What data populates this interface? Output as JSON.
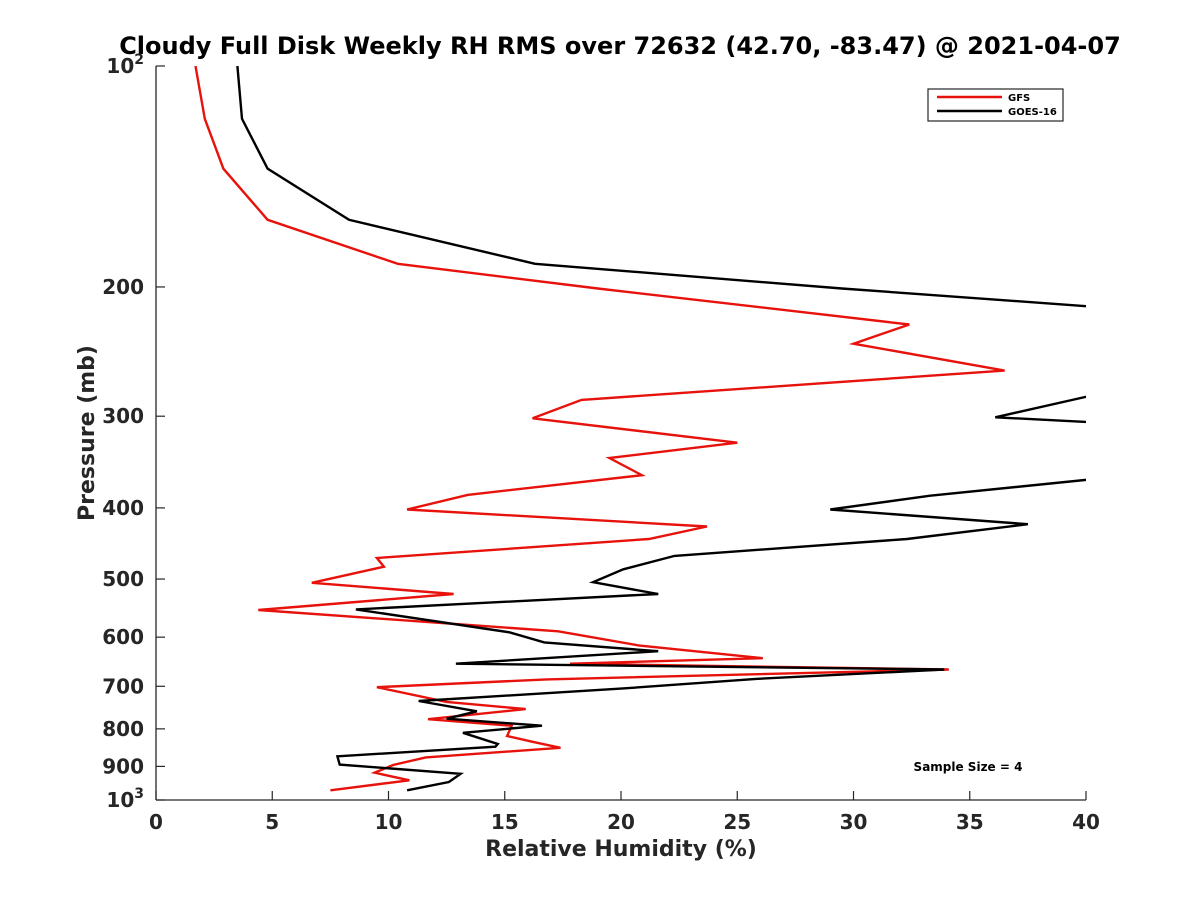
{
  "chart_data": {
    "type": "line",
    "title": "Cloudy Full Disk Weekly RH RMS over 72632 (42.70, -83.47) @ 2021-04-07",
    "xlabel": "Relative Humidity (%)",
    "ylabel": "Pressure (mb)",
    "xlim": [
      0,
      40
    ],
    "ylim": [
      100,
      1000
    ],
    "yscale": "log",
    "y_reversed": true,
    "grid": false,
    "legend_position": "top-right",
    "x_ticks": [
      "0",
      "5",
      "10",
      "15",
      "20",
      "25",
      "30",
      "35",
      "40"
    ],
    "y_ticks": [
      {
        "value": 100,
        "label": "10",
        "sup": "2"
      },
      {
        "value": 200,
        "label": "200",
        "sup": ""
      },
      {
        "value": 300,
        "label": "300",
        "sup": ""
      },
      {
        "value": 400,
        "label": "400",
        "sup": ""
      },
      {
        "value": 500,
        "label": "500",
        "sup": ""
      },
      {
        "value": 600,
        "label": "600",
        "sup": ""
      },
      {
        "value": 700,
        "label": "700",
        "sup": ""
      },
      {
        "value": 800,
        "label": "800",
        "sup": ""
      },
      {
        "value": 900,
        "label": "900",
        "sup": ""
      },
      {
        "value": 1000,
        "label": "10",
        "sup": "3"
      }
    ],
    "series": [
      {
        "name": "GFS",
        "color": "#e8120c",
        "points": [
          [
            1.7,
            100
          ],
          [
            2.1,
            118
          ],
          [
            2.9,
            138
          ],
          [
            4.8,
            162
          ],
          [
            10.4,
            186
          ],
          [
            19.0,
            201
          ],
          [
            32.4,
            225
          ],
          [
            30.0,
            239
          ],
          [
            36.5,
            260
          ],
          [
            18.3,
            285
          ],
          [
            16.2,
            302
          ],
          [
            25.0,
            326
          ],
          [
            19.5,
            342
          ],
          [
            20.9,
            361
          ],
          [
            13.4,
            384
          ],
          [
            10.8,
            402
          ],
          [
            23.7,
            424
          ],
          [
            21.2,
            441
          ],
          [
            9.5,
            468
          ],
          [
            9.8,
            481
          ],
          [
            6.7,
            506
          ],
          [
            12.8,
            524
          ],
          [
            4.4,
            551
          ],
          [
            17.3,
            589
          ],
          [
            20.8,
            616
          ],
          [
            26.1,
            641
          ],
          [
            17.8,
            652
          ],
          [
            34.1,
            664
          ],
          [
            16.8,
            685
          ],
          [
            9.5,
            702
          ],
          [
            12.5,
            735
          ],
          [
            15.9,
            752
          ],
          [
            11.7,
            776
          ],
          [
            15.3,
            792
          ],
          [
            15.1,
            818
          ],
          [
            16.2,
            833
          ],
          [
            17.4,
            849
          ],
          [
            11.6,
            875
          ],
          [
            10.2,
            896
          ],
          [
            9.4,
            918
          ],
          [
            10.9,
            940
          ],
          [
            7.5,
            970
          ]
        ]
      },
      {
        "name": "GOES-16",
        "color": "#000000",
        "points": [
          [
            3.5,
            100
          ],
          [
            3.7,
            118
          ],
          [
            4.8,
            138
          ],
          [
            8.3,
            162
          ],
          [
            16.3,
            186
          ],
          [
            29.5,
            201
          ],
          [
            40.5,
            213
          ],
          [
            40.5,
            280
          ],
          [
            36.1,
            301
          ],
          [
            40.5,
            306
          ],
          [
            40.5,
            365
          ],
          [
            33.3,
            385
          ],
          [
            29.0,
            402
          ],
          [
            37.5,
            421
          ],
          [
            32.3,
            441
          ],
          [
            22.3,
            465
          ],
          [
            20.1,
            485
          ],
          [
            18.8,
            505
          ],
          [
            21.6,
            524
          ],
          [
            8.6,
            550
          ],
          [
            15.2,
            591
          ],
          [
            16.7,
            610
          ],
          [
            21.6,
            627
          ],
          [
            12.9,
            652
          ],
          [
            33.9,
            664
          ],
          [
            25.8,
            684
          ],
          [
            20.0,
            705
          ],
          [
            11.3,
            733
          ],
          [
            13.8,
            757
          ],
          [
            12.5,
            775
          ],
          [
            16.6,
            792
          ],
          [
            13.2,
            810
          ],
          [
            14.7,
            839
          ],
          [
            14.6,
            846
          ],
          [
            7.8,
            872
          ],
          [
            7.9,
            895
          ],
          [
            13.1,
            921
          ],
          [
            12.6,
            945
          ],
          [
            10.8,
            970
          ]
        ]
      }
    ],
    "annotation": "Sample Size = 4"
  }
}
